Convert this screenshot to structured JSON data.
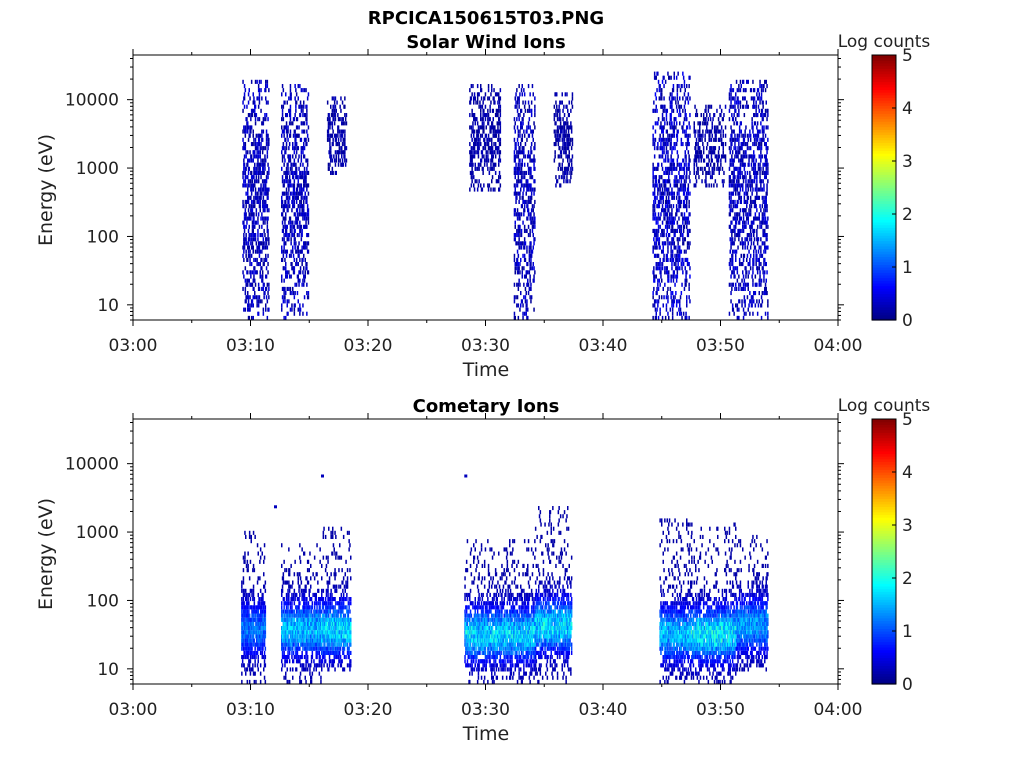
{
  "figure_title": "RPCICA150615T03.PNG",
  "colorbar": {
    "label": "Log counts",
    "ticks": [
      "0",
      "1",
      "2",
      "3",
      "4",
      "5"
    ],
    "range": [
      0,
      5
    ],
    "colormap": "jet"
  },
  "chart_data": [
    {
      "type": "heatmap",
      "title": "Solar Wind Ions",
      "xlabel": "Time",
      "ylabel": "Energy (eV)",
      "yscale": "log",
      "ylim": [
        6,
        45000
      ],
      "xlim": [
        "03:00",
        "04:00"
      ],
      "xticks": [
        "03:00",
        "03:10",
        "03:20",
        "03:30",
        "03:40",
        "03:50",
        "04:00"
      ],
      "yticks": [
        {
          "value": 10,
          "label": "10"
        },
        {
          "value": 100,
          "label": "100"
        },
        {
          "value": 1000,
          "label": "1000"
        },
        {
          "value": 10000,
          "label": "10000"
        }
      ],
      "grid": false,
      "bursts": [
        {
          "t_start": "03:09.3",
          "t_end": "03:11.5",
          "e_min": 6,
          "e_max": 18000,
          "log_counts": [
            0.1,
            0.5
          ]
        },
        {
          "t_start": "03:12.6",
          "t_end": "03:14.9",
          "e_min": 6,
          "e_max": 16000,
          "log_counts": [
            0.1,
            0.5
          ]
        },
        {
          "t_start": "03:16.5",
          "t_end": "03:18.1",
          "e_min": 700,
          "e_max": 10000,
          "log_counts": [
            0.1,
            0.3
          ]
        },
        {
          "t_start": "03:28.6",
          "t_end": "03:31.2",
          "e_min": 400,
          "e_max": 15000,
          "log_counts": [
            0.1,
            0.3
          ]
        },
        {
          "t_start": "03:32.4",
          "t_end": "03:34.2",
          "e_min": 6,
          "e_max": 15000,
          "log_counts": [
            0.1,
            0.5
          ]
        },
        {
          "t_start": "03:35.8",
          "t_end": "03:37.4",
          "e_min": 500,
          "e_max": 12000,
          "log_counts": [
            0.1,
            0.3
          ]
        },
        {
          "t_start": "03:44.2",
          "t_end": "03:47.4",
          "e_min": 6,
          "e_max": 23000,
          "log_counts": [
            0.1,
            0.6
          ]
        },
        {
          "t_start": "03:47.7",
          "t_end": "03:50.4",
          "e_min": 500,
          "e_max": 8000,
          "log_counts": [
            0.1,
            0.3
          ]
        },
        {
          "t_start": "03:50.7",
          "t_end": "03:54.0",
          "e_min": 6,
          "e_max": 18000,
          "log_counts": [
            0.1,
            0.5
          ]
        }
      ]
    },
    {
      "type": "heatmap",
      "title": "Cometary Ions",
      "xlabel": "Time",
      "ylabel": "Energy (eV)",
      "yscale": "log",
      "ylim": [
        6,
        45000
      ],
      "xlim": [
        "03:00",
        "04:00"
      ],
      "xticks": [
        "03:00",
        "03:10",
        "03:20",
        "03:30",
        "03:40",
        "03:50",
        "04:00"
      ],
      "yticks": [
        {
          "value": 10,
          "label": "10"
        },
        {
          "value": 100,
          "label": "100"
        },
        {
          "value": 1000,
          "label": "1000"
        },
        {
          "value": 10000,
          "label": "10000"
        }
      ],
      "grid": false,
      "isolated_points": [
        {
          "t": "03:16.0",
          "e": 6500,
          "log_counts": 0.3
        },
        {
          "t": "03:28.2",
          "e": 6500,
          "log_counts": 0.3
        },
        {
          "t": "03:12.0",
          "e": 2300,
          "log_counts": 0.3
        }
      ],
      "bursts": [
        {
          "t_start": "03:09.2",
          "t_end": "03:11.2",
          "e_min": 6,
          "e_max": 1000,
          "e_peak": 35,
          "log_counts": [
            0.2,
            1.5
          ]
        },
        {
          "t_start": "03:12.6",
          "t_end": "03:16.0",
          "e_min": 6,
          "e_max": 600,
          "e_peak": 35,
          "log_counts": [
            0.2,
            2.0
          ]
        },
        {
          "t_start": "03:16.0",
          "t_end": "03:18.5",
          "e_min": 8,
          "e_max": 1100,
          "e_peak": 35,
          "log_counts": [
            0.2,
            2.2
          ]
        },
        {
          "t_start": "03:28.2",
          "t_end": "03:34.2",
          "e_min": 6,
          "e_max": 700,
          "e_peak": 30,
          "log_counts": [
            0.2,
            2.2
          ]
        },
        {
          "t_start": "03:34.2",
          "t_end": "03:37.3",
          "e_min": 6,
          "e_max": 2200,
          "e_peak": 40,
          "log_counts": [
            0.2,
            2.2
          ]
        },
        {
          "t_start": "03:44.8",
          "t_end": "03:47.5",
          "e_min": 6,
          "e_max": 1400,
          "e_peak": 30,
          "log_counts": [
            0.2,
            2.0
          ]
        },
        {
          "t_start": "03:47.5",
          "t_end": "03:51.3",
          "e_min": 6,
          "e_max": 1200,
          "e_peak": 30,
          "log_counts": [
            0.2,
            2.4
          ]
        },
        {
          "t_start": "03:51.3",
          "t_end": "03:54.0",
          "e_min": 8,
          "e_max": 800,
          "e_peak": 40,
          "log_counts": [
            0.2,
            1.8
          ]
        }
      ]
    }
  ]
}
